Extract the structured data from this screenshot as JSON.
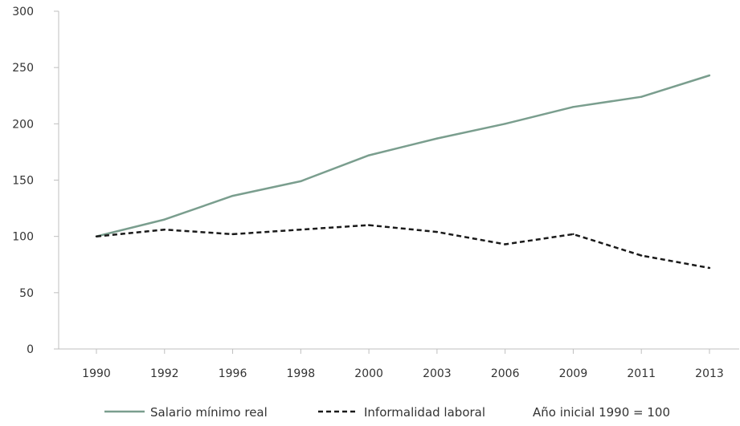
{
  "chart_data": {
    "type": "line",
    "title": "",
    "xlabel": "",
    "ylabel": "",
    "categories": [
      "1990",
      "1992",
      "1996",
      "1998",
      "2000",
      "2003",
      "2006",
      "2009",
      "2011",
      "2013"
    ],
    "y_ticks": [
      "0",
      "50",
      "100",
      "150",
      "200",
      "250",
      "300"
    ],
    "ylim": [
      0,
      300
    ],
    "grid": false,
    "legend_position": "bottom",
    "series": [
      {
        "name": "Salario mínimo real",
        "values": [
          100,
          115,
          136,
          149,
          172,
          187,
          200,
          215,
          224,
          243
        ],
        "color": "#7a9e8e",
        "style": "solid"
      },
      {
        "name": "Informalidad laboral",
        "values": [
          100,
          106,
          102,
          106,
          110,
          104,
          93,
          102,
          83,
          72
        ],
        "color": "#1a1a1a",
        "style": "dashed"
      }
    ],
    "note": "Año inicial 1990 = 100"
  }
}
